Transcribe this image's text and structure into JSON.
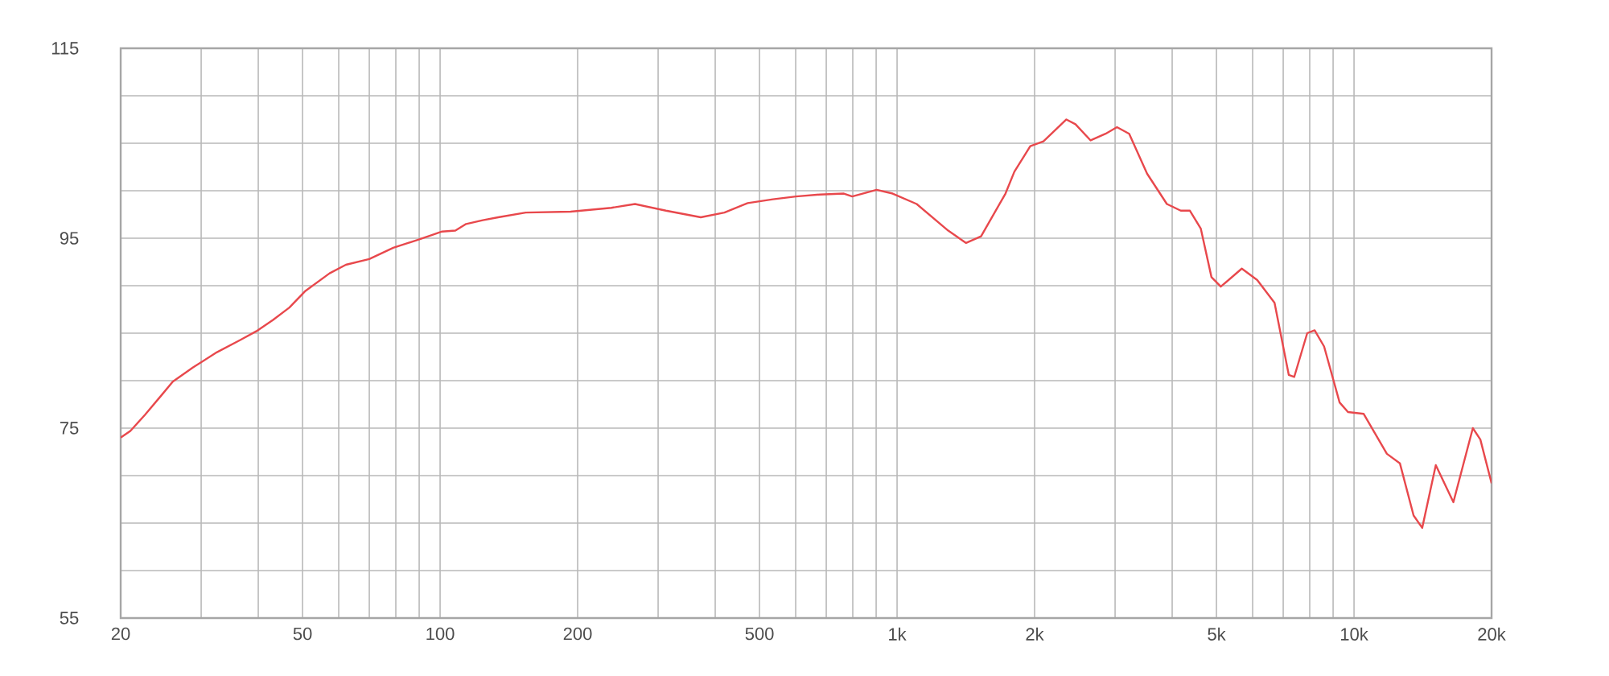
{
  "chart_data": {
    "type": "line",
    "x": [
      20,
      21,
      22.6,
      24.5,
      26,
      28.8,
      32.5,
      36.6,
      39.6,
      43.1,
      46.8,
      50.6,
      57.3,
      62.2,
      70,
      79,
      89,
      95.6,
      101,
      108,
      114,
      124,
      134,
      154,
      193,
      237,
      267,
      312,
      372,
      419,
      471,
      535,
      601,
      678,
      765,
      798,
      902,
      978,
      1104,
      1294,
      1416,
      1527,
      1727,
      1806,
      1957,
      2091,
      2347,
      2457,
      2652,
      2860,
      3029,
      3221,
      3525,
      3895,
      4176,
      4374,
      4621,
      4876,
      5110,
      5681,
      6141,
      6700,
      7200,
      7400,
      7900,
      8200,
      8600,
      9300,
      9700,
      10500,
      11800,
      12600,
      13500,
      14100,
      15100,
      16500,
      18200,
      18900,
      20000
    ],
    "series": [
      {
        "color": "#e8484c",
        "values": [
          74.0,
          74.7,
          76.4,
          78.4,
          79.9,
          81.4,
          83.0,
          84.3,
          85.2,
          86.4,
          87.7,
          89.4,
          91.3,
          92.2,
          92.8,
          94.0,
          94.8,
          95.3,
          95.7,
          95.8,
          96.5,
          96.9,
          97.2,
          97.7,
          97.8,
          98.2,
          98.6,
          97.9,
          97.2,
          97.7,
          98.7,
          99.1,
          99.4,
          99.6,
          99.7,
          99.4,
          100.1,
          99.7,
          98.6,
          95.8,
          94.5,
          95.2,
          99.7,
          102.0,
          104.7,
          105.2,
          107.5,
          107.0,
          105.3,
          106.0,
          106.7,
          106.0,
          101.8,
          98.6,
          97.9,
          97.9,
          96.0,
          90.9,
          89.9,
          91.8,
          90.6,
          88.2,
          80.6,
          80.4,
          85.0,
          85.3,
          83.6,
          77.7,
          76.7,
          76.5,
          72.3,
          71.3,
          65.8,
          64.5,
          71.1,
          67.2,
          75.0,
          73.8,
          69.2
        ]
      }
    ],
    "xlim": [
      20,
      20000
    ],
    "ylim": [
      55,
      115
    ],
    "xticks": [
      20,
      {
        "value": 30,
        "label": null
      },
      {
        "value": 40,
        "label": null
      },
      50,
      {
        "value": 60,
        "label": null
      },
      {
        "value": 70,
        "label": null
      },
      {
        "value": 80,
        "label": null
      },
      {
        "value": 90,
        "label": null
      },
      100,
      200,
      {
        "value": 300,
        "label": null
      },
      {
        "value": 400,
        "label": null
      },
      500,
      {
        "value": 600,
        "label": null
      },
      {
        "value": 700,
        "label": null
      },
      {
        "value": 800,
        "label": null
      },
      {
        "value": 900,
        "label": null
      },
      {
        "value": 1000,
        "label": "1k"
      },
      {
        "value": 2000,
        "label": "2k"
      },
      {
        "value": 3000,
        "label": null
      },
      {
        "value": 4000,
        "label": null
      },
      {
        "value": 5000,
        "label": "5k"
      },
      {
        "value": 6000,
        "label": null
      },
      {
        "value": 7000,
        "label": null
      },
      {
        "value": 8000,
        "label": null
      },
      {
        "value": 9000,
        "label": null
      },
      {
        "value": 10000,
        "label": "10k"
      },
      {
        "value": 20000,
        "label": "20k"
      }
    ],
    "yticks": [
      55,
      {
        "value": 60,
        "label": null
      },
      {
        "value": 65,
        "label": null
      },
      {
        "value": 70,
        "label": null
      },
      75,
      {
        "value": 80,
        "label": null
      },
      {
        "value": 85,
        "label": null
      },
      {
        "value": 90,
        "label": null
      },
      95,
      {
        "value": 100,
        "label": null
      },
      {
        "value": 105,
        "label": null
      },
      {
        "value": 110,
        "label": null
      },
      115
    ],
    "grid": true,
    "log": "x",
    "marker": "none",
    "line_style": "solid"
  }
}
